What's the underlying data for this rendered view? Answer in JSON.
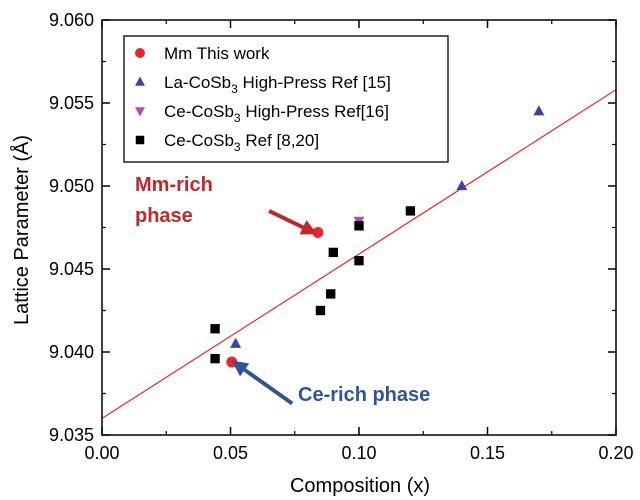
{
  "chart_data": {
    "type": "scatter",
    "xlabel": "Composition (x)",
    "ylabel": "Lattice Parameter (Å)",
    "xlim": [
      0.0,
      0.2
    ],
    "ylim": [
      9.035,
      9.06
    ],
    "x_ticks": [
      "0.00",
      "0.05",
      "0.10",
      "0.15",
      "0.20"
    ],
    "y_ticks": [
      "9.035",
      "9.040",
      "9.045",
      "9.050",
      "9.055",
      "9.060"
    ],
    "grid": false,
    "legend_position": "top-left",
    "series": [
      {
        "name": "Mm This work",
        "name_prefix": "Mm This work",
        "name_subscript": "",
        "name_suffix": "",
        "marker": "circle",
        "color": "#e8262b",
        "points": [
          [
            0.084,
            9.0472
          ],
          [
            0.0505,
            9.0394
          ]
        ]
      },
      {
        "name": "La-CoSb3 High-Press Ref [15]",
        "name_prefix": "La-CoSb",
        "name_subscript": "3",
        "name_suffix": " High-Press Ref [15]",
        "marker": "triangle-up",
        "color": "#3846a3",
        "points": [
          [
            0.052,
            9.0405
          ],
          [
            0.14,
            9.05
          ],
          [
            0.17,
            9.0545
          ]
        ]
      },
      {
        "name": "Ce-CoSb3 High-Press Ref[16]",
        "name_prefix": "Ce-CoSb",
        "name_subscript": "3",
        "name_suffix": " High-Press Ref[16]",
        "marker": "triangle-down",
        "color": "#b04fb0",
        "points": [
          [
            0.1,
            9.0479
          ]
        ]
      },
      {
        "name": "Ce-CoSb3 Ref [8,20]",
        "name_prefix": "Ce-CoSb",
        "name_subscript": "3",
        "name_suffix": " Ref [8,20]",
        "marker": "square",
        "color": "#000000",
        "points": [
          [
            0.044,
            9.0414
          ],
          [
            0.044,
            9.0396
          ],
          [
            0.085,
            9.0425
          ],
          [
            0.089,
            9.0435
          ],
          [
            0.09,
            9.046
          ],
          [
            0.1,
            9.0476
          ],
          [
            0.1,
            9.0455
          ],
          [
            0.12,
            9.0485
          ]
        ]
      }
    ],
    "fit_line": {
      "color": "#e8262b",
      "x": [
        0.0,
        0.2
      ],
      "y": [
        9.036,
        9.0558
      ]
    },
    "annotations": [
      {
        "line1": "Mm-rich",
        "line2": "phase",
        "color": "#c0282b",
        "from": [
          0.065,
          9.0485
        ],
        "to": [
          0.081,
          9.0473
        ]
      },
      {
        "line1": "Ce-rich phase",
        "line2": "",
        "color": "#2f5597",
        "from": [
          0.074,
          9.0369
        ],
        "to": [
          0.053,
          9.0392
        ]
      }
    ]
  }
}
